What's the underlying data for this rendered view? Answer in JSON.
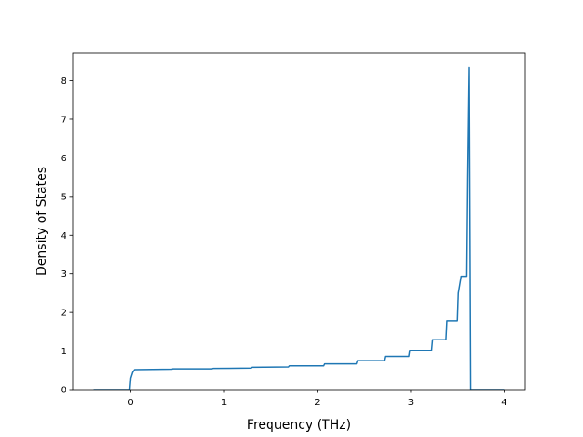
{
  "chart_data": {
    "type": "line",
    "title": "",
    "xlabel": "Frequency (THz)",
    "ylabel": "Density of States",
    "xlim": [
      -0.62,
      4.22
    ],
    "ylim": [
      0,
      8.72
    ],
    "xticks": [
      0,
      1,
      2,
      3,
      4
    ],
    "yticks": [
      0,
      1,
      2,
      3,
      4,
      5,
      6,
      7,
      8
    ],
    "xtick_labels": [
      "0",
      "1",
      "2",
      "3",
      "4"
    ],
    "ytick_labels": [
      "0",
      "1",
      "2",
      "3",
      "4",
      "5",
      "6",
      "7",
      "8"
    ],
    "grid": false,
    "legend": "none",
    "series": [
      {
        "color": "#1f77b4",
        "x": [
          -0.4,
          -0.01,
          0.0,
          0.02,
          0.04,
          0.44,
          0.45,
          0.87,
          0.88,
          1.29,
          1.3,
          1.69,
          1.7,
          2.07,
          2.08,
          2.42,
          2.43,
          2.72,
          2.73,
          2.98,
          2.99,
          3.22,
          3.23,
          3.38,
          3.39,
          3.5,
          3.51,
          3.54,
          3.55,
          3.6,
          3.61,
          3.625,
          3.64,
          4.0
        ],
        "y": [
          0.0,
          0.0,
          0.3,
          0.45,
          0.52,
          0.53,
          0.54,
          0.54,
          0.55,
          0.56,
          0.58,
          0.59,
          0.62,
          0.62,
          0.67,
          0.67,
          0.75,
          0.75,
          0.86,
          0.86,
          1.02,
          1.02,
          1.29,
          1.29,
          1.77,
          1.77,
          2.5,
          2.93,
          2.93,
          2.93,
          5.5,
          8.33,
          0.0,
          0.0
        ]
      }
    ]
  },
  "colors": {
    "line": "#1f77b4",
    "axes": "#000000",
    "background": "#ffffff"
  }
}
